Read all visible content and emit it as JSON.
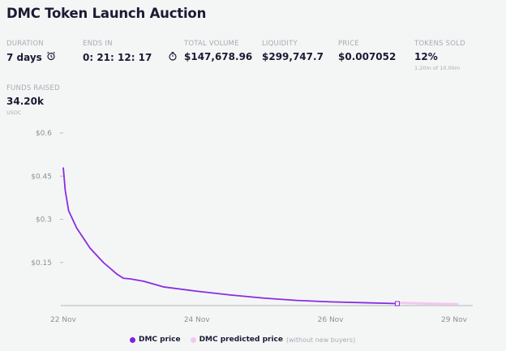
{
  "header": {
    "title": "DMC Token Launch Auction"
  },
  "stats": {
    "duration": {
      "label": "DURATION",
      "value": "7 days",
      "icon": "alarm-clock-icon"
    },
    "ends_in": {
      "label": "ENDS IN",
      "value": "0: 21: 12: 17",
      "icon": "stopwatch-icon"
    },
    "total_volume": {
      "label": "TOTAL VOLUME",
      "value": "$147,678.96"
    },
    "liquidity": {
      "label": "LIQUIDITY",
      "value": "$299,747.7"
    },
    "price": {
      "label": "PRICE",
      "value": "$0.007052"
    },
    "tokens_sold": {
      "label": "TOKENS SOLD",
      "value": "12%",
      "sub": "1.20m of 10.00m"
    },
    "funds_raised": {
      "label": "FUNDS RAISED",
      "value": "34.20k",
      "sub": "USDC"
    }
  },
  "colors": {
    "price": "#8a2be2",
    "predicted": "#f3c7f0",
    "axis": "#c9cacd"
  },
  "chart_data": {
    "type": "line",
    "title": "",
    "xlabel": "",
    "ylabel": "",
    "ylim": [
      0,
      0.6
    ],
    "xlim": [
      0,
      6
    ],
    "y_ticks": [
      {
        "value": 0.6,
        "label": "$0.6"
      },
      {
        "value": 0.45,
        "label": "$0.45"
      },
      {
        "value": 0.3,
        "label": "$0.3"
      },
      {
        "value": 0.15,
        "label": "$0.15"
      }
    ],
    "x_ticks": [
      {
        "value": 0,
        "label": "22 Nov"
      },
      {
        "value": 2,
        "label": "24 Nov"
      },
      {
        "value": 4,
        "label": "26 Nov"
      },
      {
        "value": 5.85,
        "label": "29 Nov"
      }
    ],
    "series": [
      {
        "name": "DMC price",
        "x": [
          0,
          0.03,
          0.08,
          0.2,
          0.4,
          0.6,
          0.8,
          0.9,
          1.0,
          1.2,
          1.5,
          2.0,
          2.5,
          3.0,
          3.5,
          4.0,
          4.5,
          5.0
        ],
        "y": [
          0.48,
          0.4,
          0.33,
          0.27,
          0.2,
          0.15,
          0.11,
          0.095,
          0.093,
          0.085,
          0.065,
          0.05,
          0.037,
          0.026,
          0.018,
          0.013,
          0.01,
          0.007
        ]
      },
      {
        "name": "DMC predicted price",
        "x": [
          5.0,
          5.5,
          5.9
        ],
        "y": [
          0.007,
          0.004,
          0.002
        ]
      }
    ],
    "legend": [
      {
        "name": "DMC price",
        "note": ""
      },
      {
        "name": "DMC predicted price",
        "note": "(without new buyers)"
      }
    ],
    "legend_position": "bottom",
    "grid": false
  }
}
